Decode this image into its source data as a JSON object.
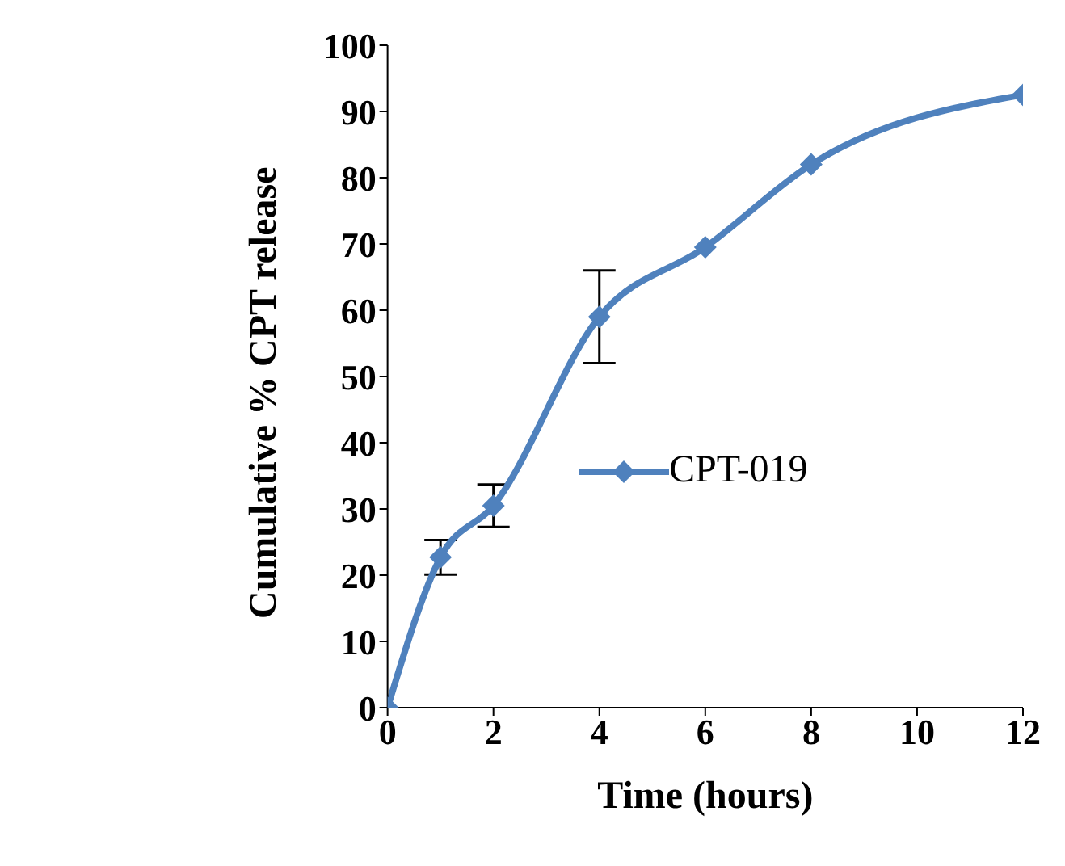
{
  "chart_data": {
    "type": "line",
    "xlabel": "Time (hours)",
    "ylabel": "Cumulative % CPT release",
    "x": [
      0,
      1,
      2,
      4,
      6,
      8,
      12
    ],
    "series": [
      {
        "name": "CPT-019",
        "color": "#4f81bd",
        "values": [
          0,
          22.7,
          30.5,
          59,
          69.5,
          82,
          92.5
        ],
        "errors": [
          null,
          2.6,
          3.2,
          7,
          null,
          null,
          null
        ]
      }
    ],
    "xlim": [
      0,
      12
    ],
    "xticks": [
      0,
      2,
      4,
      6,
      8,
      10,
      12
    ],
    "ylim": [
      0,
      100
    ],
    "yticks": [
      0,
      10,
      20,
      30,
      40,
      50,
      60,
      70,
      80,
      90,
      100
    ],
    "grid": false,
    "legend": "right",
    "marker": "diamond",
    "line_style": "solid"
  }
}
